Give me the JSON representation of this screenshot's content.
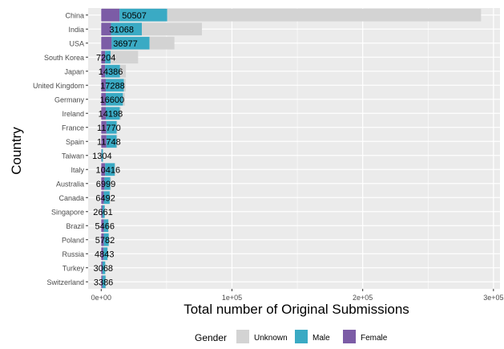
{
  "chart_data": {
    "type": "bar",
    "orientation": "horizontal",
    "stacked": true,
    "xlabel": "Total number of Original Submissions",
    "ylabel": "Country",
    "xlim": [
      -10000,
      305000
    ],
    "xticks": [
      {
        "value": 0,
        "label": "0e+00"
      },
      {
        "value": 100000,
        "label": "1e+05"
      },
      {
        "value": 200000,
        "label": "2e+05"
      },
      {
        "value": 300000,
        "label": "3e+05"
      }
    ],
    "grid": true,
    "legend": {
      "title": "Gender",
      "position": "bottom",
      "entries": [
        {
          "name": "Unknown",
          "color": "#d3d3d3"
        },
        {
          "name": "Male",
          "color": "#3aaac4"
        },
        {
          "name": "Female",
          "color": "#7c5ca6"
        }
      ]
    },
    "categories": [
      "China",
      "India",
      "USA",
      "South Korea",
      "Japan",
      "United Kingdom",
      "Germany",
      "Ireland",
      "France",
      "Spain",
      "Taiwan",
      "Italy",
      "Australia",
      "Canada",
      "Singapore",
      "Brazil",
      "Poland",
      "Russia",
      "Turkey",
      "Switzerland"
    ],
    "series": [
      {
        "name": "Female",
        "color": "#7c5ca6",
        "values": [
          14000,
          7500,
          8000,
          3000,
          3000,
          3500,
          3500,
          3500,
          4000,
          4000,
          300,
          3000,
          2500,
          2000,
          1000,
          2000,
          2000,
          1800,
          1000,
          1000
        ]
      },
      {
        "name": "Male",
        "color": "#3aaac4",
        "values": [
          36507,
          23568,
          28977,
          4204,
          11386,
          13788,
          13100,
          10698,
          7770,
          7748,
          1004,
          7416,
          4499,
          4492,
          1661,
          3466,
          3782,
          3043,
          2068,
          2386
        ]
      },
      {
        "name": "Unknown",
        "color": "#d3d3d3",
        "values": [
          240000,
          46000,
          19000,
          21000,
          4500,
          1500,
          1500,
          1000,
          500,
          500,
          0,
          500,
          500,
          300,
          0,
          300,
          300,
          300,
          0,
          300
        ]
      }
    ],
    "data_labels": [
      "50507",
      "31068",
      "36977",
      "7204",
      "14386",
      "17288",
      "16600",
      "14198",
      "11770",
      "11748",
      "1304",
      "10416",
      "6999",
      "6492",
      "2661",
      "5466",
      "5782",
      "4843",
      "3068",
      "3386"
    ],
    "colors": {
      "panel": "#ebebeb",
      "grid": "#ffffff"
    }
  }
}
